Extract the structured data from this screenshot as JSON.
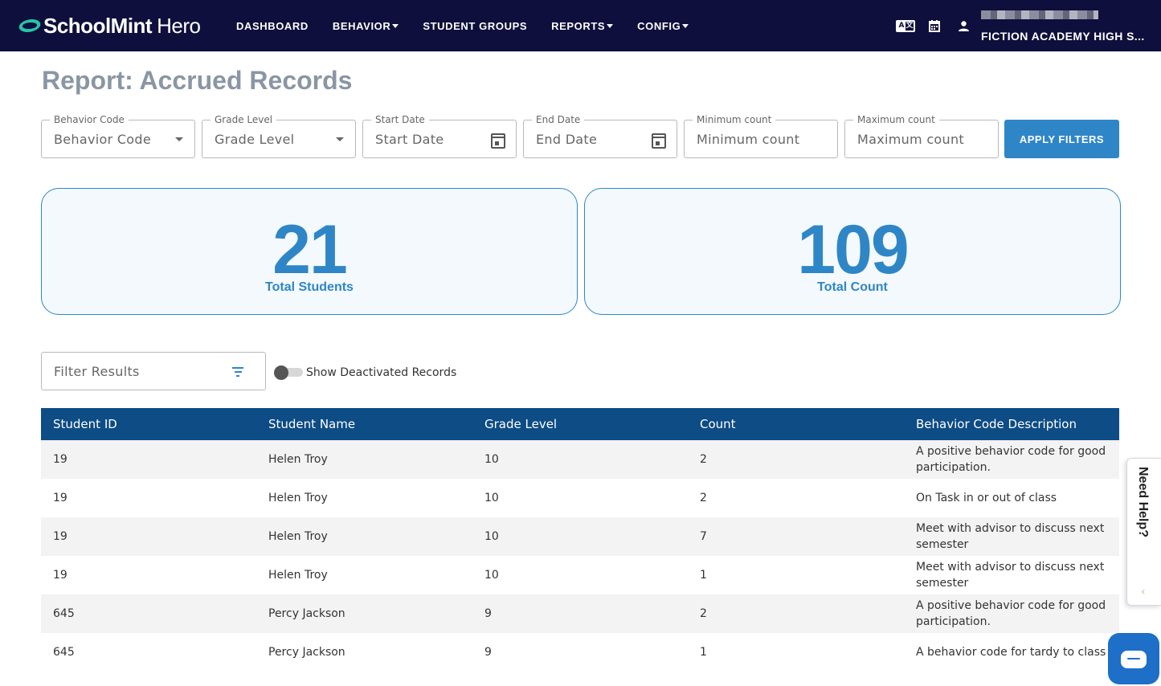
{
  "navbar": {
    "brand_bold": "SchoolMint",
    "brand_light": "Hero",
    "links": [
      {
        "label": "DASHBOARD",
        "has_caret": false
      },
      {
        "label": "BEHAVIOR",
        "has_caret": true
      },
      {
        "label": "STUDENT GROUPS",
        "has_caret": false
      },
      {
        "label": "REPORTS",
        "has_caret": true
      },
      {
        "label": "CONFIG",
        "has_caret": true
      }
    ],
    "icons": [
      "translate-icon",
      "calendar-icon",
      "user-icon"
    ],
    "school_name": "FICTION ACADEMY HIGH S..."
  },
  "page": {
    "title": "Report: Accrued Records"
  },
  "filters": {
    "behavior_code": {
      "label": "Behavior Code",
      "value": "Behavior Code"
    },
    "grade_level": {
      "label": "Grade Level",
      "value": "Grade Level"
    },
    "start_date": {
      "label": "Start Date",
      "value": "Start Date"
    },
    "end_date": {
      "label": "End Date",
      "value": "End Date"
    },
    "min_count": {
      "label": "Minimum count",
      "value": "Minimum count"
    },
    "max_count": {
      "label": "Maximum count",
      "value": "Maximum count"
    },
    "apply_label": "APPLY FILTERS"
  },
  "stats": {
    "students": {
      "value": "21",
      "label": "Total Students"
    },
    "count": {
      "value": "109",
      "label": "Total Count"
    }
  },
  "results": {
    "filter_placeholder": "Filter Results",
    "toggle_label": "Show Deactivated Records",
    "toggle_on": false
  },
  "table": {
    "headers": [
      "Student ID",
      "Student Name",
      "Grade Level",
      "Count",
      "Behavior Code Description"
    ],
    "rows": [
      [
        "19",
        "Helen Troy",
        "10",
        "2",
        "A positive behavior code for good participation."
      ],
      [
        "19",
        "Helen Troy",
        "10",
        "2",
        "On Task in or out of class"
      ],
      [
        "19",
        "Helen Troy",
        "10",
        "7",
        "Meet with advisor to discuss next semester"
      ],
      [
        "19",
        "Helen Troy",
        "10",
        "1",
        "Meet with advisor to discuss next semester"
      ],
      [
        "645",
        "Percy Jackson",
        "9",
        "2",
        "A positive behavior code for good participation."
      ],
      [
        "645",
        "Percy Jackson",
        "9",
        "1",
        "A behavior code for tardy to class"
      ]
    ]
  },
  "help": {
    "label": "Need Help?"
  },
  "colors": {
    "navbar_bg": "#0f0f3d",
    "accent": "#2f86c6",
    "table_header": "#0d4c84",
    "brand_mark": "#27c3a8"
  }
}
